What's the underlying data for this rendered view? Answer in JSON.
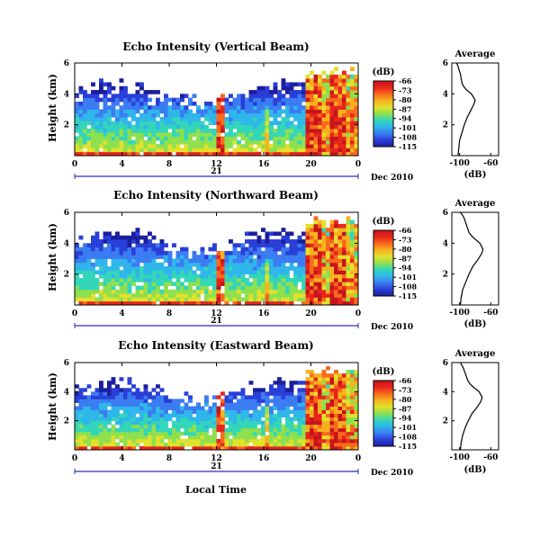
{
  "figure": {
    "date_label": "Dec 2010",
    "day_label": "21",
    "xlabel": "Local Time",
    "colorbar_unit": "(dB)",
    "colorbar_ticks": [
      -66,
      -73,
      -80,
      -87,
      -94,
      -101,
      -108,
      -115
    ],
    "colorbar_colors": [
      "#1c1f9c",
      "#2a3fd8",
      "#3b7cf2",
      "#2fb6ea",
      "#33d6b9",
      "#8ee04f",
      "#e2e12c",
      "#f7b21f",
      "#f76a1d",
      "#e8251c",
      "#c6141b"
    ],
    "colors": {
      "profile": "#000000",
      "axis_blue": "#2a2fb3",
      "frame": "#000000"
    }
  },
  "chart_data": [
    {
      "type": "heatmap",
      "title": "Echo Intensity (Vertical Beam)",
      "ylabel": "Height (km)",
      "x_ticks": [
        "0",
        "4",
        "8",
        "12",
        "16",
        "20",
        "0"
      ],
      "x_range": [
        0,
        24
      ],
      "y_ticks": [
        "2",
        "4",
        "6"
      ],
      "y_range": [
        0,
        6
      ],
      "colorbar_range_db": [
        -115,
        -66
      ]
    },
    {
      "type": "line",
      "title": "Average",
      "xlabel": "(dB)",
      "x_ticks": [
        "-100",
        "-60"
      ],
      "x_range": [
        -110,
        -50
      ],
      "y_ticks": [
        "2",
        "4",
        "6"
      ],
      "y_range": [
        0,
        6
      ],
      "series": [
        {
          "x": [
            -102,
            -101,
            -100,
            -97,
            -94,
            -90,
            -86,
            -82,
            -80,
            -85,
            -92,
            -95,
            -97,
            -98,
            -99,
            -101,
            -102,
            -104
          ],
          "y": [
            0.0,
            0.5,
            1.0,
            1.5,
            2.0,
            2.5,
            2.9,
            3.3,
            3.6,
            4.0,
            4.3,
            4.5,
            4.7,
            5.0,
            5.3,
            5.6,
            5.8,
            6.0
          ]
        }
      ]
    },
    {
      "type": "heatmap",
      "title": "Echo Intensity (Northward Beam)",
      "ylabel": "Height (km)",
      "x_ticks": [
        "0",
        "4",
        "8",
        "12",
        "16",
        "20",
        "0"
      ],
      "x_range": [
        0,
        24
      ],
      "y_ticks": [
        "2",
        "4",
        "6"
      ],
      "y_range": [
        0,
        6
      ],
      "colorbar_range_db": [
        -115,
        -66
      ]
    },
    {
      "type": "line",
      "title": "Average",
      "xlabel": "(dB)",
      "x_ticks": [
        "-100",
        "-60"
      ],
      "x_range": [
        -110,
        -50
      ],
      "y_ticks": [
        "2",
        "4",
        "6"
      ],
      "y_range": [
        0,
        6
      ],
      "series": [
        {
          "x": [
            -99,
            -98,
            -96,
            -92,
            -88,
            -83,
            -77,
            -72,
            -70,
            -74,
            -81,
            -85,
            -88,
            -90,
            -92,
            -94,
            -96,
            -99
          ],
          "y": [
            0.0,
            0.5,
            1.0,
            1.5,
            2.0,
            2.5,
            2.9,
            3.3,
            3.6,
            4.0,
            4.3,
            4.5,
            4.7,
            5.0,
            5.3,
            5.6,
            5.8,
            6.0
          ]
        }
      ]
    },
    {
      "type": "heatmap",
      "title": "Echo Intensity (Eastward Beam)",
      "ylabel": "Height (km)",
      "x_ticks": [
        "0",
        "4",
        "8",
        "12",
        "16",
        "20",
        "0"
      ],
      "x_range": [
        0,
        24
      ],
      "y_ticks": [
        "2",
        "4",
        "6"
      ],
      "y_range": [
        0,
        6
      ],
      "colorbar_range_db": [
        -115,
        -66
      ]
    },
    {
      "type": "line",
      "title": "Average",
      "xlabel": "(dB)",
      "x_ticks": [
        "-100",
        "-60"
      ],
      "x_range": [
        -110,
        -50
      ],
      "y_ticks": [
        "2",
        "4",
        "6"
      ],
      "y_range": [
        0,
        6
      ],
      "series": [
        {
          "x": [
            -99,
            -98,
            -96,
            -93,
            -89,
            -84,
            -78,
            -73,
            -71,
            -75,
            -82,
            -86,
            -89,
            -91,
            -93,
            -95,
            -97,
            -99
          ],
          "y": [
            0.0,
            0.5,
            1.0,
            1.5,
            2.0,
            2.5,
            2.9,
            3.3,
            3.6,
            4.0,
            4.3,
            4.5,
            4.7,
            5.0,
            5.3,
            5.6,
            5.8,
            6.0
          ]
        }
      ]
    }
  ]
}
